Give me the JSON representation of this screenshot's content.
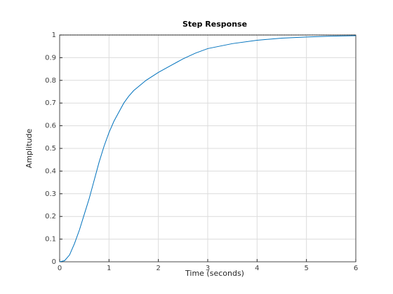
{
  "chart_data": {
    "type": "line",
    "title": "Step Response",
    "xlabel": "Time (seconds)",
    "ylabel": "Amplitude",
    "x": [
      0,
      0.1,
      0.2,
      0.3,
      0.4,
      0.5,
      0.6,
      0.7,
      0.8,
      0.9,
      1.0,
      1.1,
      1.2,
      1.3,
      1.4,
      1.5,
      1.75,
      2.0,
      2.25,
      2.5,
      2.75,
      3.0,
      3.5,
      4.0,
      4.5,
      5.0,
      5.5,
      6.0
    ],
    "series": [
      {
        "color": "#0072bd",
        "values": [
          0,
          0.005,
          0.03,
          0.08,
          0.14,
          0.21,
          0.28,
          0.36,
          0.44,
          0.51,
          0.57,
          0.62,
          0.66,
          0.7,
          0.73,
          0.755,
          0.8,
          0.835,
          0.865,
          0.895,
          0.92,
          0.94,
          0.962,
          0.977,
          0.986,
          0.991,
          0.995,
          0.997
        ]
      }
    ],
    "steady_state": 1,
    "xlim": [
      0,
      6
    ],
    "xticks": [
      0,
      1,
      2,
      3,
      4,
      5,
      6
    ],
    "ylim": [
      0,
      1
    ],
    "yticks": [
      0,
      0.1,
      0.2,
      0.3,
      0.4,
      0.5,
      0.6,
      0.7,
      0.8,
      0.9,
      1
    ],
    "grid": true
  }
}
